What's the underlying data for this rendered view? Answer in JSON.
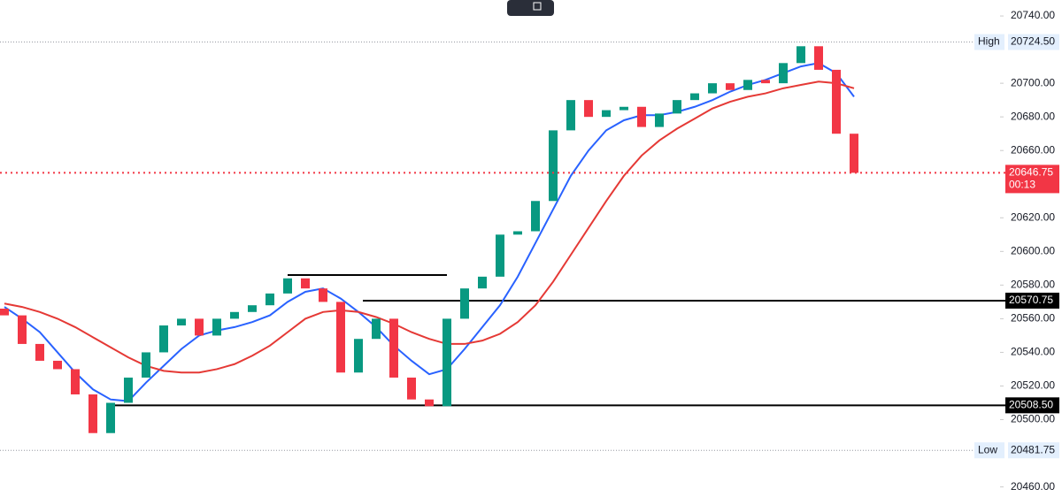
{
  "chart_data": {
    "type": "candlestick",
    "open": [
      20566,
      20562,
      20545,
      20535,
      20530,
      20515,
      20492,
      20510,
      20525,
      20540,
      20556,
      20560,
      20550,
      20560,
      20564,
      20568,
      20575,
      20584,
      20578,
      20570,
      20528,
      20548,
      20560,
      20525,
      20512,
      20508,
      20560,
      20578,
      20585,
      20610,
      20612,
      20630,
      20672,
      20690,
      20680,
      20684,
      20686,
      20674,
      20682,
      20690,
      20694,
      20700,
      20696,
      20702,
      20700,
      20712,
      20722,
      20708,
      20670
    ],
    "high": {
      "name": "High",
      "value": 20724.5,
      "label": "20724.50"
    },
    "low": {
      "name": "Low",
      "value": 20481.75,
      "label": "20481.75"
    },
    "close": [
      20562,
      20545,
      20535,
      20530,
      20515,
      20492,
      20510,
      20525,
      20540,
      20556,
      20560,
      20550,
      20560,
      20564,
      20568,
      20575,
      20584,
      20578,
      20570,
      20528,
      20548,
      20560,
      20525,
      20512,
      20508,
      20560,
      20578,
      20585,
      20610,
      20612,
      20630,
      20672,
      20690,
      20680,
      20684,
      20686,
      20674,
      20682,
      20690,
      20694,
      20700,
      20696,
      20702,
      20700,
      20712,
      20722,
      20708,
      20670,
      20646.75
    ],
    "series": [
      {
        "color": "#2962ff",
        "values": [
          20567,
          20560,
          20552,
          20540,
          20528,
          20518,
          20512,
          20511,
          20522,
          20532,
          20542,
          20550,
          20553,
          20555,
          20558,
          20562,
          20570,
          20576,
          20578,
          20572,
          20564,
          20555,
          20544,
          20535,
          20527,
          20530,
          20542,
          20555,
          20568,
          20585,
          20605,
          20625,
          20645,
          20660,
          20672,
          20678,
          20681,
          20681,
          20683,
          20686,
          20690,
          20695,
          20699,
          20702,
          20706,
          20710,
          20712,
          20706,
          20692
        ]
      },
      {
        "color": "#e53935",
        "values": [
          20569,
          20567,
          20564,
          20560,
          20555,
          20549,
          20543,
          20537,
          20532,
          20529,
          20528,
          20528,
          20530,
          20533,
          20538,
          20544,
          20552,
          20560,
          20564,
          20565,
          20564,
          20561,
          20557,
          20552,
          20548,
          20545,
          20545,
          20547,
          20551,
          20558,
          20568,
          20582,
          20598,
          20614,
          20630,
          20645,
          20657,
          20666,
          20673,
          20679,
          20685,
          20689,
          20692,
          20694,
          20697,
          20699,
          20701,
          20700,
          20697
        ]
      }
    ],
    "up_color": "#089981",
    "down_color": "#f23645",
    "ylim": [
      20454,
      20749.5
    ],
    "yticks": [
      {
        "value": 20740,
        "label": "20740.00"
      },
      {
        "value": 20700,
        "label": "20700.00"
      },
      {
        "value": 20680,
        "label": "20680.00"
      },
      {
        "value": 20660,
        "label": "20660.00"
      },
      {
        "value": 20620,
        "label": "20620.00"
      },
      {
        "value": 20600,
        "label": "20600.00"
      },
      {
        "value": 20580,
        "label": "20580.00"
      },
      {
        "value": 20560,
        "label": "20560.00"
      },
      {
        "value": 20540,
        "label": "20540.00"
      },
      {
        "value": 20520,
        "label": "20520.00"
      },
      {
        "value": 20500,
        "label": "20500.00"
      },
      {
        "value": 20460,
        "label": "20460.00"
      }
    ],
    "levels": [
      20570.75,
      {
        "value": 20508.5,
        "label": "20508.50"
      }
    ],
    "trendline": 20586,
    "last_price": {
      "value": 20646.75,
      "label": "20646.75",
      "countdown": "00:13"
    }
  }
}
